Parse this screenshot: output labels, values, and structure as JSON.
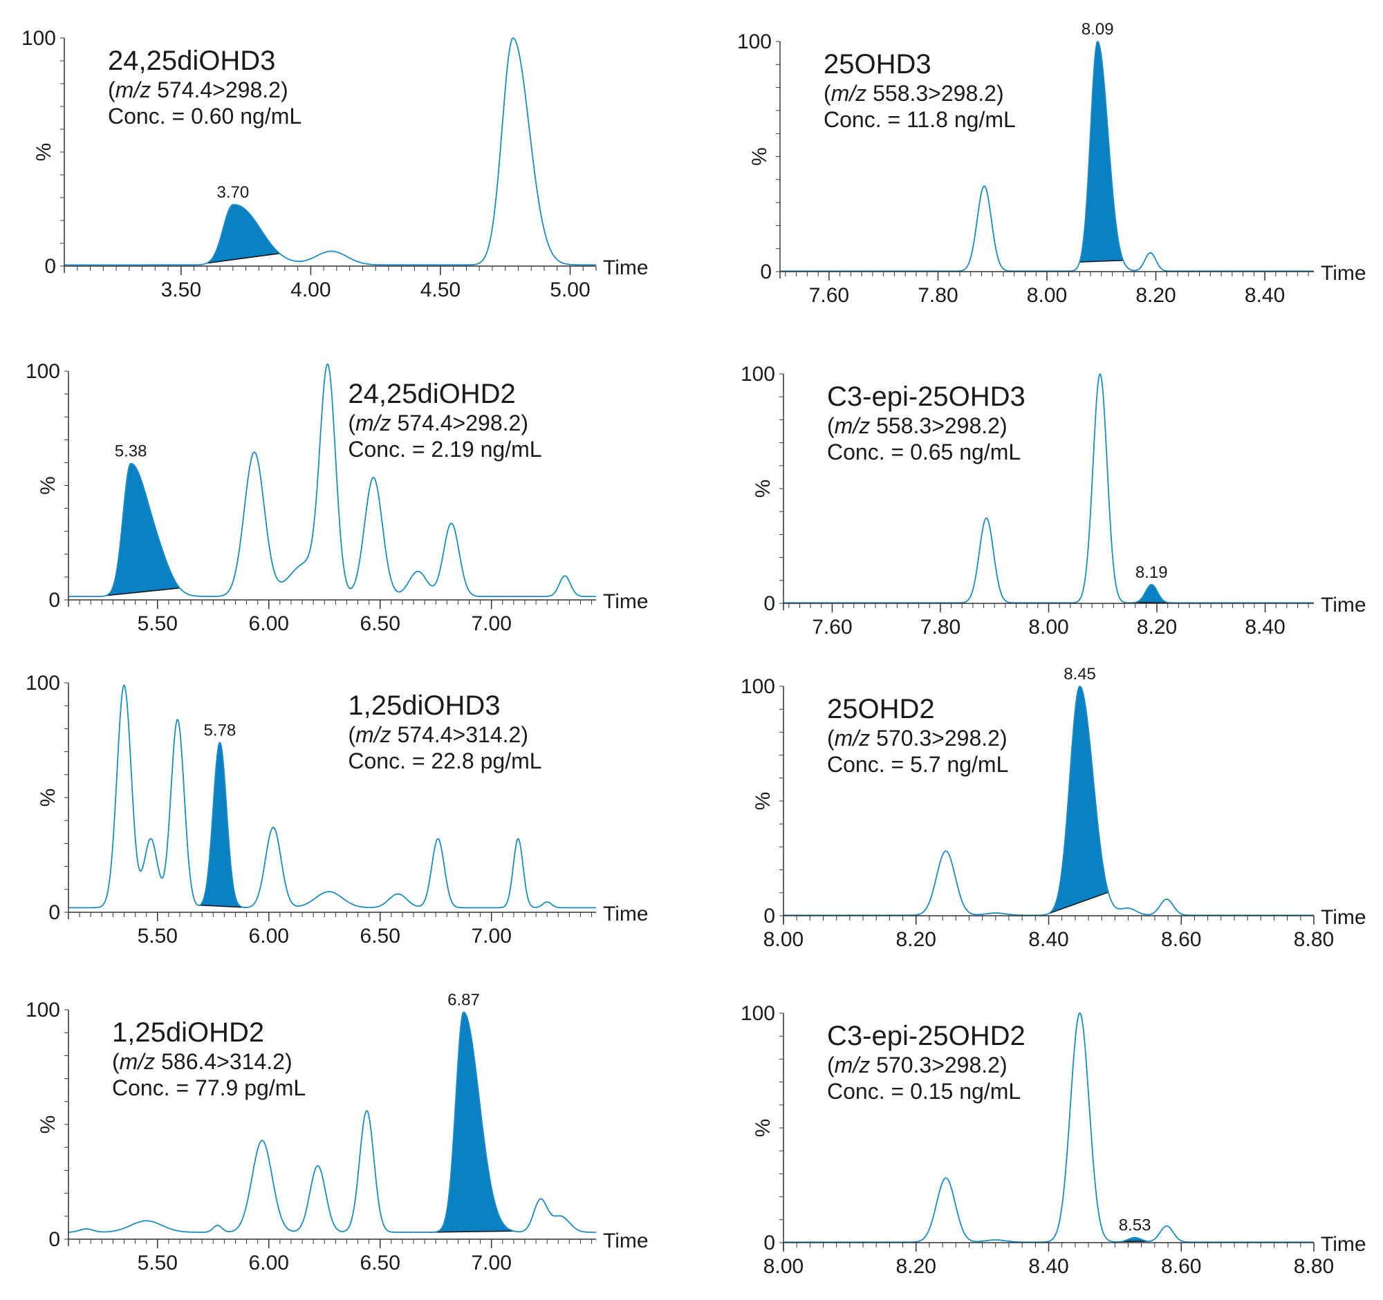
{
  "colors": {
    "trace": "#1a8bc4",
    "fill": "#0b80c2",
    "baseline": "#111111",
    "axis": "#333333",
    "text": "#1a1a1a"
  },
  "chart_data": [
    {
      "type": "line",
      "analyte": "24,25diOHD3",
      "mz_prefix": "m/z",
      "transition": "574.4>298.2",
      "conc": "Conc. = 0.60 ng/mL",
      "xlabel": "Time",
      "ylabel": "%",
      "xlim": [
        3.05,
        5.1
      ],
      "ylim": [
        0,
        100
      ],
      "x_ticks": [
        3.5,
        4.0,
        4.5,
        5.0
      ],
      "x_tick_labels": [
        "3.50",
        "4.00",
        "4.50",
        "5.00"
      ],
      "y_tick_labels": [
        "100",
        "0"
      ],
      "label_position": "top-left",
      "baseline": 0.5,
      "peaks": [
        {
          "rt": 3.7,
          "height": 26,
          "width": 0.038,
          "tail": 0.06,
          "filled": true,
          "label": "3.70",
          "fill_start": 3.6,
          "fill_end": 3.88
        },
        {
          "rt": 3.78,
          "height": 1.5,
          "width": 0.05
        },
        {
          "rt": 4.08,
          "height": 6,
          "width": 0.06
        },
        {
          "rt": 4.78,
          "height": 99.5,
          "width": 0.042,
          "tail": 0.02
        }
      ]
    },
    {
      "type": "line",
      "analyte": "25OHD3",
      "mz_prefix": "m/z",
      "transition": "558.3>298.2",
      "conc": "Conc. = 11.8 ng/mL",
      "xlabel": "Time",
      "ylabel": "%",
      "xlim": [
        7.51,
        8.49
      ],
      "ylim": [
        0,
        100
      ],
      "x_ticks": [
        7.6,
        7.8,
        8.0,
        8.2,
        8.4
      ],
      "x_tick_labels": [
        "7.60",
        "7.80",
        "8.00",
        "8.20",
        "8.40"
      ],
      "y_tick_labels": [
        "100",
        "0"
      ],
      "label_position": "top-left",
      "baseline": 0.2,
      "peaks": [
        {
          "rt": 7.885,
          "height": 37,
          "width": 0.013
        },
        {
          "rt": 8.093,
          "height": 99.8,
          "width": 0.013,
          "tail": 0.006,
          "filled": true,
          "label": "8.09",
          "fill_start": 8.06,
          "fill_end": 8.14
        },
        {
          "rt": 8.19,
          "height": 8,
          "width": 0.01
        }
      ]
    },
    {
      "type": "line",
      "analyte": "24,25diOHD2",
      "mz_prefix": "m/z",
      "transition": "574.4>298.2",
      "conc": "Conc. = 2.19 ng/mL",
      "xlabel": "Time",
      "ylabel": "%",
      "xlim": [
        5.1,
        7.47
      ],
      "ylim": [
        0,
        100
      ],
      "x_ticks": [
        5.5,
        6.0,
        6.5,
        7.0
      ],
      "x_tick_labels": [
        "5.50",
        "6.00",
        "6.50",
        "7.00"
      ],
      "y_tick_labels": [
        "100",
        "0"
      ],
      "label_position": "top-right",
      "baseline": 1.5,
      "peaks": [
        {
          "rt": 5.38,
          "height": 58,
          "width": 0.035,
          "tail": 0.05,
          "filled": true,
          "label": "5.38",
          "fill_start": 5.27,
          "fill_end": 5.6
        },
        {
          "rt": 5.52,
          "height": 6,
          "width": 0.05
        },
        {
          "rt": 5.935,
          "height": 63,
          "width": 0.045
        },
        {
          "rt": 6.16,
          "height": 14,
          "width": 0.07
        },
        {
          "rt": 6.265,
          "height": 97,
          "width": 0.035
        },
        {
          "rt": 6.47,
          "height": 52,
          "width": 0.04
        },
        {
          "rt": 6.67,
          "height": 11,
          "width": 0.04
        },
        {
          "rt": 6.82,
          "height": 32,
          "width": 0.035
        },
        {
          "rt": 7.33,
          "height": 9,
          "width": 0.025
        }
      ]
    },
    {
      "type": "line",
      "analyte": "C3-epi-25OHD3",
      "mz_prefix": "m/z",
      "transition": "558.3>298.2",
      "conc": "Conc. = 0.65 ng/mL",
      "xlabel": "Time",
      "ylabel": "%",
      "xlim": [
        7.51,
        8.49
      ],
      "ylim": [
        0,
        100
      ],
      "x_ticks": [
        7.6,
        7.8,
        8.0,
        8.2,
        8.4
      ],
      "x_tick_labels": [
        "7.60",
        "7.80",
        "8.00",
        "8.20",
        "8.40"
      ],
      "y_tick_labels": [
        "100",
        "0"
      ],
      "label_position": "top-left",
      "baseline": 0.2,
      "peaks": [
        {
          "rt": 7.885,
          "height": 37,
          "width": 0.013
        },
        {
          "rt": 8.095,
          "height": 99.8,
          "width": 0.013
        },
        {
          "rt": 8.19,
          "height": 8,
          "width": 0.011,
          "filled": true,
          "label": "8.19",
          "fill_start": 8.16,
          "fill_end": 8.23
        }
      ]
    },
    {
      "type": "line",
      "analyte": "1,25diOHD3",
      "mz_prefix": "m/z",
      "transition": "574.4>314.2",
      "conc": "Conc. = 22.8 pg/mL",
      "xlabel": "Time",
      "ylabel": "%",
      "xlim": [
        5.1,
        7.47
      ],
      "ylim": [
        0,
        100
      ],
      "x_ticks": [
        5.5,
        6.0,
        6.5,
        7.0
      ],
      "x_tick_labels": [
        "5.50",
        "6.00",
        "6.50",
        "7.00"
      ],
      "y_tick_labels": [
        "100",
        "0"
      ],
      "label_position": "top-right",
      "baseline": 2,
      "peaks": [
        {
          "rt": 5.35,
          "height": 97,
          "width": 0.032
        },
        {
          "rt": 5.47,
          "height": 30,
          "width": 0.03
        },
        {
          "rt": 5.59,
          "height": 82,
          "width": 0.03
        },
        {
          "rt": 5.78,
          "height": 72,
          "width": 0.03,
          "filled": true,
          "label": "5.78",
          "fill_start": 5.69,
          "fill_end": 5.9
        },
        {
          "rt": 6.02,
          "height": 35,
          "width": 0.035
        },
        {
          "rt": 6.27,
          "height": 7,
          "width": 0.06
        },
        {
          "rt": 6.58,
          "height": 6,
          "width": 0.04
        },
        {
          "rt": 6.76,
          "height": 30,
          "width": 0.028
        },
        {
          "rt": 7.12,
          "height": 30,
          "width": 0.022
        },
        {
          "rt": 7.25,
          "height": 2.5,
          "width": 0.02
        }
      ]
    },
    {
      "type": "line",
      "analyte": "25OHD2",
      "mz_prefix": "m/z",
      "transition": "570.3>298.2",
      "conc": "Conc. = 5.7 ng/mL",
      "xlabel": "Time",
      "ylabel": "%",
      "xlim": [
        8.0,
        8.8
      ],
      "ylim": [
        0,
        100
      ],
      "x_ticks": [
        8.0,
        8.2,
        8.4,
        8.6,
        8.8
      ],
      "x_tick_labels": [
        "8.00",
        "8.20",
        "8.40",
        "8.60",
        "8.80"
      ],
      "y_tick_labels": [
        "100",
        "0"
      ],
      "label_position": "top-left",
      "baseline": 0.2,
      "peaks": [
        {
          "rt": 8.245,
          "height": 28,
          "width": 0.014
        },
        {
          "rt": 8.32,
          "height": 1,
          "width": 0.015
        },
        {
          "rt": 8.447,
          "height": 99.8,
          "width": 0.015,
          "tail": 0.005,
          "filled": true,
          "label": "8.45",
          "fill_start": 8.4,
          "fill_end": 8.49
        },
        {
          "rt": 8.52,
          "height": 3,
          "width": 0.012
        },
        {
          "rt": 8.578,
          "height": 7,
          "width": 0.01
        }
      ]
    },
    {
      "type": "line",
      "analyte": "1,25diOHD2",
      "mz_prefix": "m/z",
      "transition": "586.4>314.2",
      "conc": "Conc. = 77.9 pg/mL",
      "xlabel": "Time",
      "ylabel": "%",
      "xlim": [
        5.1,
        7.47
      ],
      "ylim": [
        0,
        100
      ],
      "x_ticks": [
        5.5,
        6.0,
        6.5,
        7.0
      ],
      "x_tick_labels": [
        "5.50",
        "6.00",
        "6.50",
        "7.00"
      ],
      "y_tick_labels": [
        "100",
        "0"
      ],
      "label_position": "top-left",
      "baseline": 3,
      "peaks": [
        {
          "rt": 5.18,
          "height": 1.5,
          "width": 0.03
        },
        {
          "rt": 5.45,
          "height": 5,
          "width": 0.07
        },
        {
          "rt": 5.77,
          "height": 3,
          "width": 0.02
        },
        {
          "rt": 5.97,
          "height": 40,
          "width": 0.045
        },
        {
          "rt": 6.22,
          "height": 29,
          "width": 0.035
        },
        {
          "rt": 6.44,
          "height": 53,
          "width": 0.032
        },
        {
          "rt": 6.875,
          "height": 96,
          "width": 0.035,
          "tail": 0.035,
          "filled": true,
          "label": "6.87",
          "fill_start": 6.72,
          "fill_end": 7.1
        },
        {
          "rt": 7.22,
          "height": 14,
          "width": 0.03
        },
        {
          "rt": 7.31,
          "height": 7,
          "width": 0.04
        }
      ]
    },
    {
      "type": "line",
      "analyte": "C3-epi-25OHD2",
      "mz_prefix": "m/z",
      "transition": "570.3>298.2",
      "conc": "Conc. = 0.15 ng/mL",
      "xlabel": "Time",
      "ylabel": "%",
      "xlim": [
        8.0,
        8.8
      ],
      "ylim": [
        0,
        100
      ],
      "x_ticks": [
        8.0,
        8.2,
        8.4,
        8.6,
        8.8
      ],
      "x_tick_labels": [
        "8.00",
        "8.20",
        "8.40",
        "8.60",
        "8.80"
      ],
      "y_tick_labels": [
        "100",
        "0"
      ],
      "label_position": "top-left",
      "baseline": 0.2,
      "peaks": [
        {
          "rt": 8.245,
          "height": 28,
          "width": 0.014
        },
        {
          "rt": 8.32,
          "height": 1,
          "width": 0.015
        },
        {
          "rt": 8.447,
          "height": 99.8,
          "width": 0.014
        },
        {
          "rt": 8.53,
          "height": 2,
          "width": 0.01,
          "filled": true,
          "label": "8.53",
          "fill_start": 8.51,
          "fill_end": 8.55
        },
        {
          "rt": 8.578,
          "height": 7,
          "width": 0.01
        }
      ]
    }
  ]
}
